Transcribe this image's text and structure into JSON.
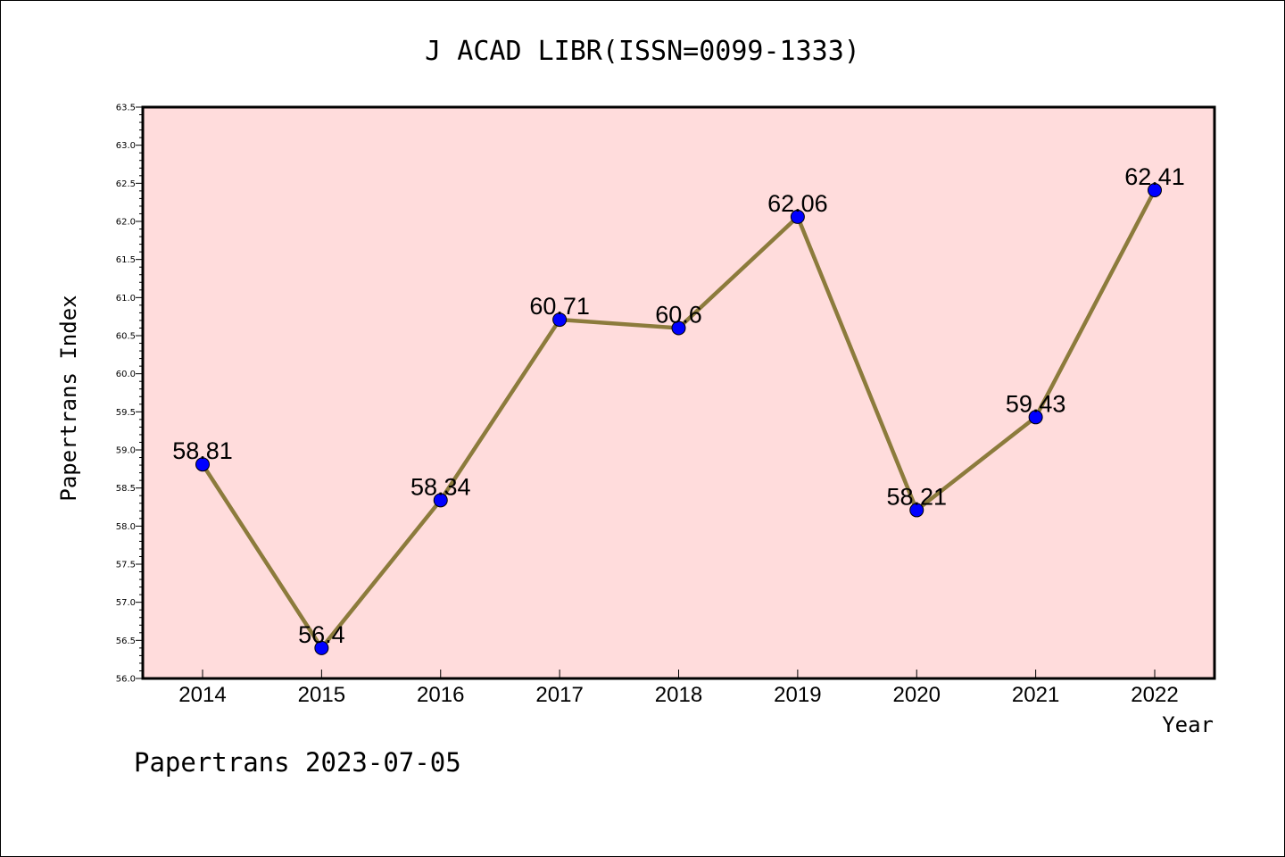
{
  "chart_data": {
    "type": "line",
    "title": "J ACAD LIBR(ISSN=0099-1333)",
    "xlabel": "Year",
    "ylabel": "Papertrans Index",
    "x": [
      "2014",
      "2015",
      "2016",
      "2017",
      "2018",
      "2019",
      "2020",
      "2021",
      "2022"
    ],
    "series": [
      {
        "values": [
          58.81,
          56.4,
          58.34,
          60.71,
          60.6,
          62.06,
          58.21,
          59.43,
          62.41
        ],
        "labels": [
          "58.81",
          "56.4",
          "58.34",
          "60.71",
          "60.6",
          "62.06",
          "58.21",
          "59.43",
          "62.41"
        ]
      }
    ],
    "ylim": [
      56.0,
      63.5
    ],
    "yticks": [
      "56.0",
      "56.5",
      "57.0",
      "57.5",
      "58.0",
      "58.5",
      "59.0",
      "59.5",
      "60.0",
      "60.5",
      "61.0",
      "61.5",
      "62.0",
      "62.5",
      "63.0",
      "63.5"
    ],
    "grid": false,
    "colors": {
      "plot_background": "#ffdcdc",
      "line": "#8c7b3c",
      "marker": "#0000ff"
    }
  },
  "footer": {
    "text": "Papertrans 2023-07-05"
  }
}
